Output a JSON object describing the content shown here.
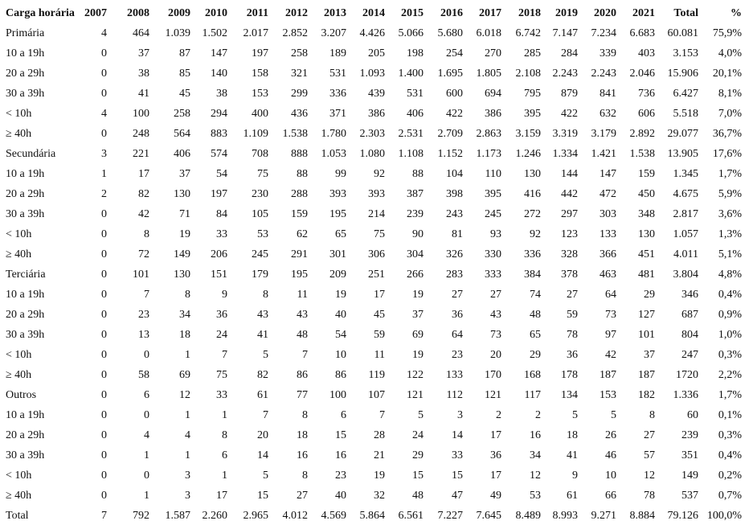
{
  "table": {
    "header": [
      "Carga horária",
      "2007",
      "2008",
      "2009",
      "2010",
      "2011",
      "2012",
      "2013",
      "2014",
      "2015",
      "2016",
      "2017",
      "2018",
      "2019",
      "2020",
      "2021",
      "Total",
      "%"
    ],
    "rows": [
      [
        "Primária",
        "4",
        "464",
        "1.039",
        "1.502",
        "2.017",
        "2.852",
        "3.207",
        "4.426",
        "5.066",
        "5.680",
        "6.018",
        "6.742",
        "7.147",
        "7.234",
        "6.683",
        "60.081",
        "75,9%"
      ],
      [
        "10 a 19h",
        "0",
        "37",
        "87",
        "147",
        "197",
        "258",
        "189",
        "205",
        "198",
        "254",
        "270",
        "285",
        "284",
        "339",
        "403",
        "3.153",
        "4,0%"
      ],
      [
        "20 a 29h",
        "0",
        "38",
        "85",
        "140",
        "158",
        "321",
        "531",
        "1.093",
        "1.400",
        "1.695",
        "1.805",
        "2.108",
        "2.243",
        "2.243",
        "2.046",
        "15.906",
        "20,1%"
      ],
      [
        "30 a 39h",
        "0",
        "41",
        "45",
        "38",
        "153",
        "299",
        "336",
        "439",
        "531",
        "600",
        "694",
        "795",
        "879",
        "841",
        "736",
        "6.427",
        "8,1%"
      ],
      [
        "< 10h",
        "4",
        "100",
        "258",
        "294",
        "400",
        "436",
        "371",
        "386",
        "406",
        "422",
        "386",
        "395",
        "422",
        "632",
        "606",
        "5.518",
        "7,0%"
      ],
      [
        "≥ 40h",
        "0",
        "248",
        "564",
        "883",
        "1.109",
        "1.538",
        "1.780",
        "2.303",
        "2.531",
        "2.709",
        "2.863",
        "3.159",
        "3.319",
        "3.179",
        "2.892",
        "29.077",
        "36,7%"
      ],
      [
        "Secundária",
        "3",
        "221",
        "406",
        "574",
        "708",
        "888",
        "1.053",
        "1.080",
        "1.108",
        "1.152",
        "1.173",
        "1.246",
        "1.334",
        "1.421",
        "1.538",
        "13.905",
        "17,6%"
      ],
      [
        "10 a 19h",
        "1",
        "17",
        "37",
        "54",
        "75",
        "88",
        "99",
        "92",
        "88",
        "104",
        "110",
        "130",
        "144",
        "147",
        "159",
        "1.345",
        "1,7%"
      ],
      [
        "20 a 29h",
        "2",
        "82",
        "130",
        "197",
        "230",
        "288",
        "393",
        "393",
        "387",
        "398",
        "395",
        "416",
        "442",
        "472",
        "450",
        "4.675",
        "5,9%"
      ],
      [
        "30 a 39h",
        "0",
        "42",
        "71",
        "84",
        "105",
        "159",
        "195",
        "214",
        "239",
        "243",
        "245",
        "272",
        "297",
        "303",
        "348",
        "2.817",
        "3,6%"
      ],
      [
        "< 10h",
        "0",
        "8",
        "19",
        "33",
        "53",
        "62",
        "65",
        "75",
        "90",
        "81",
        "93",
        "92",
        "123",
        "133",
        "130",
        "1.057",
        "1,3%"
      ],
      [
        "≥ 40h",
        "0",
        "72",
        "149",
        "206",
        "245",
        "291",
        "301",
        "306",
        "304",
        "326",
        "330",
        "336",
        "328",
        "366",
        "451",
        "4.011",
        "5,1%"
      ],
      [
        "Terciária",
        "0",
        "101",
        "130",
        "151",
        "179",
        "195",
        "209",
        "251",
        "266",
        "283",
        "333",
        "384",
        "378",
        "463",
        "481",
        "3.804",
        "4,8%"
      ],
      [
        "10 a 19h",
        "0",
        "7",
        "8",
        "9",
        "8",
        "11",
        "19",
        "17",
        "19",
        "27",
        "27",
        "74",
        "27",
        "64",
        "29",
        "346",
        "0,4%"
      ],
      [
        "20 a 29h",
        "0",
        "23",
        "34",
        "36",
        "43",
        "43",
        "40",
        "45",
        "37",
        "36",
        "43",
        "48",
        "59",
        "73",
        "127",
        "687",
        "0,9%"
      ],
      [
        "30 a 39h",
        "0",
        "13",
        "18",
        "24",
        "41",
        "48",
        "54",
        "59",
        "69",
        "64",
        "73",
        "65",
        "78",
        "97",
        "101",
        "804",
        "1,0%"
      ],
      [
        "< 10h",
        "0",
        "0",
        "1",
        "7",
        "5",
        "7",
        "10",
        "11",
        "19",
        "23",
        "20",
        "29",
        "36",
        "42",
        "37",
        "247",
        "0,3%"
      ],
      [
        "≥ 40h",
        "0",
        "58",
        "69",
        "75",
        "82",
        "86",
        "86",
        "119",
        "122",
        "133",
        "170",
        "168",
        "178",
        "187",
        "187",
        "1720",
        "2,2%"
      ],
      [
        "Outros",
        "0",
        "6",
        "12",
        "33",
        "61",
        "77",
        "100",
        "107",
        "121",
        "112",
        "121",
        "117",
        "134",
        "153",
        "182",
        "1.336",
        "1,7%"
      ],
      [
        "10 a 19h",
        "0",
        "0",
        "1",
        "1",
        "7",
        "8",
        "6",
        "7",
        "5",
        "3",
        "2",
        "2",
        "5",
        "5",
        "8",
        "60",
        "0,1%"
      ],
      [
        "20 a 29h",
        "0",
        "4",
        "4",
        "8",
        "20",
        "18",
        "15",
        "28",
        "24",
        "14",
        "17",
        "16",
        "18",
        "26",
        "27",
        "239",
        "0,3%"
      ],
      [
        "30 a 39h",
        "0",
        "1",
        "1",
        "6",
        "14",
        "16",
        "16",
        "21",
        "29",
        "33",
        "36",
        "34",
        "41",
        "46",
        "57",
        "351",
        "0,4%"
      ],
      [
        "< 10h",
        "0",
        "0",
        "3",
        "1",
        "5",
        "8",
        "23",
        "19",
        "15",
        "15",
        "17",
        "12",
        "9",
        "10",
        "12",
        "149",
        "0,2%"
      ],
      [
        "≥ 40h",
        "0",
        "1",
        "3",
        "17",
        "15",
        "27",
        "40",
        "32",
        "48",
        "47",
        "49",
        "53",
        "61",
        "66",
        "78",
        "537",
        "0,7%"
      ],
      [
        "Total",
        "7",
        "792",
        "1.587",
        "2.260",
        "2.965",
        "4.012",
        "4.569",
        "5.864",
        "6.561",
        "7.227",
        "7.645",
        "8.489",
        "8.993",
        "9.271",
        "8.884",
        "79.126",
        "100,0%"
      ]
    ]
  }
}
